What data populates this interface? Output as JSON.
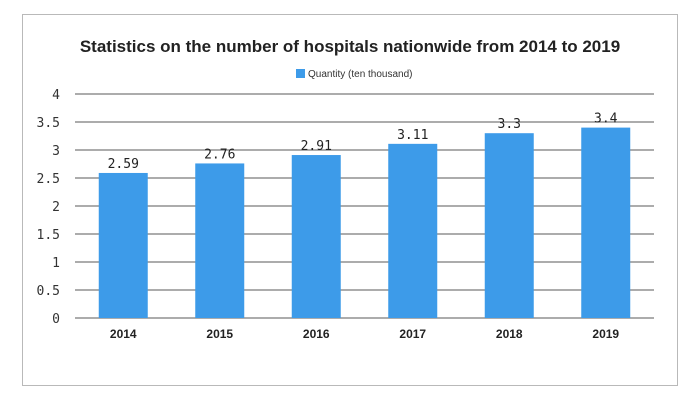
{
  "chart_data": {
    "type": "bar",
    "title": "Statistics on the number of hospitals nationwide from 2014 to 2019",
    "categories": [
      "2014",
      "2015",
      "2016",
      "2017",
      "2018",
      "2019"
    ],
    "series": [
      {
        "name": "Quantity (ten thousand)",
        "values": [
          2.59,
          2.76,
          2.91,
          3.11,
          3.3,
          3.4
        ],
        "data_labels": [
          "2.59",
          "2.76",
          "2.91",
          "3.11",
          "3.3",
          "3.4"
        ],
        "color": "#3d9be9"
      }
    ],
    "y_ticks": [
      "0",
      "0.5",
      "1",
      "1.5",
      "2",
      "2.5",
      "3",
      "3.5",
      "4"
    ],
    "ylim": [
      0,
      4
    ],
    "grid": true,
    "legend_position": "top-center"
  }
}
